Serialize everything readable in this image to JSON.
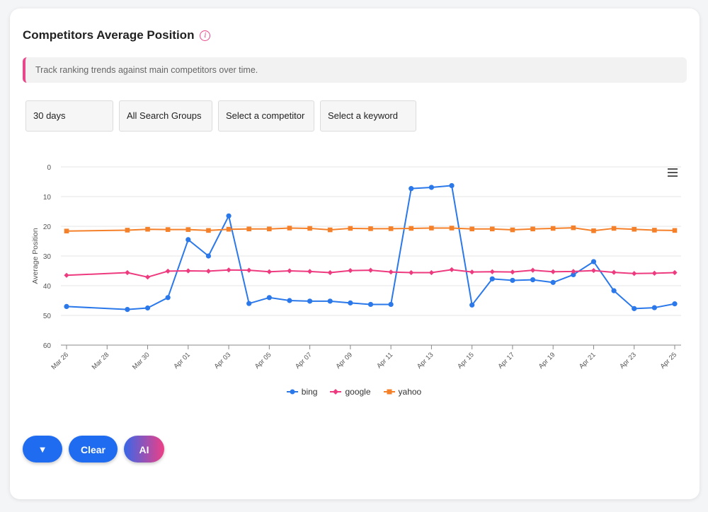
{
  "header": {
    "title": "Competitors Average Position",
    "info_icon": "info-circle-icon"
  },
  "notice": {
    "text": "Track ranking trends against main competitors over time."
  },
  "filters": {
    "period": "30 days",
    "search_group": "All Search Groups",
    "competitor_placeholder": "Select a competitor",
    "keyword_placeholder": "Select a keyword"
  },
  "chart_menu_icon": "hamburger-menu-icon",
  "actions": {
    "toggle_label": "▼",
    "clear_label": "Clear",
    "ai_label": "AI"
  },
  "colors": {
    "accent": "#e8478b",
    "bing": "#2a78ea",
    "google": "#ee3a7f",
    "yahoo": "#f5802a",
    "button": "#1f6cf0"
  },
  "chart_data": {
    "type": "line",
    "ylabel": "Average Position",
    "xlabel": "",
    "ylim": [
      0,
      60
    ],
    "y_reversed": true,
    "y_ticks": [
      0,
      10,
      20,
      30,
      40,
      50,
      60
    ],
    "x_ticks": [
      "Mar 26",
      "Mar 28",
      "Mar 30",
      "Apr 01",
      "Apr 03",
      "Apr 05",
      "Apr 07",
      "Apr 09",
      "Apr 11",
      "Apr 13",
      "Apr 15",
      "Apr 17",
      "Apr 19",
      "Apr 21",
      "Apr 23",
      "Apr 25"
    ],
    "x_days": [
      0,
      2,
      4,
      6,
      8,
      10,
      12,
      14,
      16,
      18,
      20,
      22,
      24,
      26,
      28,
      30
    ],
    "legend_position": "bottom",
    "grid": true,
    "series": [
      {
        "name": "bing",
        "marker": "circle",
        "x": [
          0,
          3,
          4,
          5,
          6,
          7,
          8,
          9,
          10,
          11,
          12,
          13,
          14,
          15,
          16,
          17,
          18,
          19,
          20,
          21,
          22,
          23,
          24,
          25,
          26,
          27,
          28,
          29,
          30
        ],
        "values": [
          47,
          48,
          47.5,
          44,
          24.5,
          30,
          16.5,
          46,
          44,
          45,
          45.2,
          45.2,
          45.8,
          46.3,
          46.3,
          7.3,
          6.9,
          6.3,
          46.5,
          37.7,
          38.2,
          38.0,
          38.9,
          36.3,
          31.9,
          41.7,
          47.7,
          47.4,
          46.1
        ]
      },
      {
        "name": "google",
        "marker": "diamond",
        "x": [
          0,
          3,
          4,
          5,
          6,
          7,
          8,
          9,
          10,
          11,
          12,
          13,
          14,
          15,
          16,
          17,
          18,
          19,
          20,
          21,
          22,
          23,
          24,
          25,
          26,
          27,
          28,
          29,
          30
        ],
        "values": [
          36.5,
          35.6,
          37.1,
          35.1,
          35.0,
          35.1,
          34.7,
          34.8,
          35.3,
          35.0,
          35.2,
          35.6,
          34.9,
          34.8,
          35.4,
          35.6,
          35.6,
          34.6,
          35.4,
          35.3,
          35.4,
          34.8,
          35.3,
          35.2,
          34.9,
          35.5,
          35.9,
          35.8,
          35.6
        ]
      },
      {
        "name": "yahoo",
        "marker": "square",
        "x": [
          0,
          3,
          4,
          5,
          6,
          7,
          8,
          9,
          10,
          11,
          12,
          13,
          14,
          15,
          16,
          17,
          18,
          19,
          20,
          21,
          22,
          23,
          24,
          25,
          26,
          27,
          28,
          29,
          30
        ],
        "values": [
          21.6,
          21.3,
          21.0,
          21.1,
          21.1,
          21.4,
          21.0,
          20.9,
          20.9,
          20.6,
          20.7,
          21.2,
          20.7,
          20.8,
          20.8,
          20.7,
          20.6,
          20.6,
          20.9,
          20.9,
          21.2,
          20.9,
          20.7,
          20.5,
          21.5,
          20.7,
          21.0,
          21.3,
          21.4
        ]
      }
    ]
  }
}
